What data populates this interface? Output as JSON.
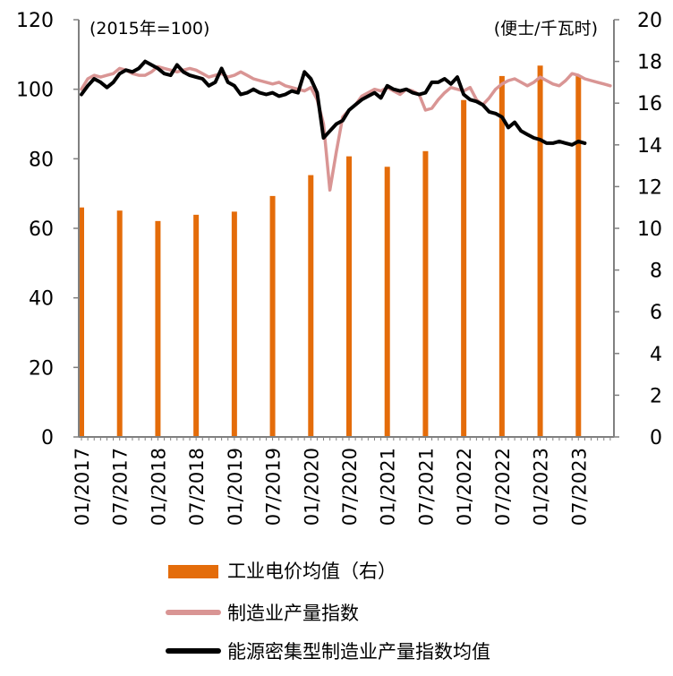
{
  "chart_data": {
    "type": "bar+line",
    "left_unit": "(2015年=100)",
    "right_unit": "(便士/千瓦时)",
    "y_left": {
      "min": 0,
      "max": 120,
      "ticks": [
        0,
        20,
        40,
        60,
        80,
        100,
        120
      ]
    },
    "y_right": {
      "min": 0,
      "max": 20,
      "ticks": [
        0,
        2,
        4,
        6,
        8,
        10,
        12,
        14,
        16,
        18,
        20
      ]
    },
    "x_tick_labels": [
      "01/2017",
      "07/2017",
      "01/2018",
      "07/2018",
      "01/2019",
      "07/2019",
      "01/2020",
      "07/2020",
      "01/2021",
      "07/2021",
      "01/2022",
      "07/2022",
      "01/2023",
      "07/2023"
    ],
    "colors": {
      "bars": "#E46C0A",
      "manufacturing": "#D99594",
      "energy_intensive": "#000000",
      "axis": "#808080"
    },
    "legend": [
      {
        "label": "工业电价均值（右）",
        "series": "electricity_price"
      },
      {
        "label": "制造业产量指数",
        "series": "manufacturing"
      },
      {
        "label": "能源密集型制造业产量指数均值",
        "series": "energy_intensive"
      }
    ],
    "electricity_price": {
      "axis": "right",
      "months": [
        0,
        6,
        12,
        18,
        24,
        30,
        36,
        42,
        48,
        54,
        60,
        66,
        72,
        78
      ],
      "values": [
        11.0,
        10.85,
        10.35,
        10.65,
        10.8,
        11.55,
        12.55,
        13.45,
        12.95,
        13.7,
        16.15,
        17.3,
        17.8,
        17.3
      ]
    },
    "manufacturing": {
      "axis": "left",
      "values": [
        100,
        103,
        104,
        103.5,
        104,
        104.5,
        106,
        105.5,
        104.5,
        104,
        104,
        105,
        106.5,
        106,
        105.5,
        105,
        105.5,
        106,
        105.5,
        104.5,
        103.5,
        104,
        104.5,
        103.5,
        104,
        105,
        104,
        103,
        102.5,
        102,
        101.5,
        102,
        101,
        100.5,
        100,
        99.5,
        100.5,
        97,
        90,
        71,
        82,
        92,
        94,
        95.5,
        98,
        99,
        100,
        99.5,
        100.5,
        99.5,
        98.5,
        100,
        99.5,
        98.5,
        94,
        94.5,
        97,
        99,
        100.5,
        100,
        99.5,
        100.5,
        97,
        95.5,
        97.5,
        100,
        101.5,
        102.5,
        103,
        102,
        101,
        102,
        103.5,
        102.5,
        101.5,
        101,
        102.5,
        104.5,
        104,
        103,
        102.5,
        102,
        101.5,
        101
      ]
    },
    "energy_intensive": {
      "axis": "left",
      "values": [
        98.5,
        101,
        103,
        102,
        100.5,
        102,
        104.5,
        105.5,
        105,
        106,
        108,
        107,
        106,
        104.5,
        104,
        107,
        105,
        104,
        103.5,
        103,
        101,
        102,
        106,
        102,
        101,
        98.5,
        99,
        100,
        99,
        98.5,
        99,
        98,
        98.5,
        99.5,
        99,
        105,
        103,
        99,
        86,
        88,
        90,
        91,
        94,
        95.5,
        97,
        98,
        99,
        97.5,
        101,
        100,
        99.5,
        100,
        99,
        98.5,
        99,
        102,
        102,
        103,
        101.5,
        103.5,
        98.5,
        97,
        96.5,
        95.5,
        93.5,
        93,
        92,
        89,
        90.5,
        88,
        87,
        86,
        85.5,
        84.5,
        84.5,
        85,
        84.5,
        84,
        85,
        84.5
      ]
    }
  }
}
